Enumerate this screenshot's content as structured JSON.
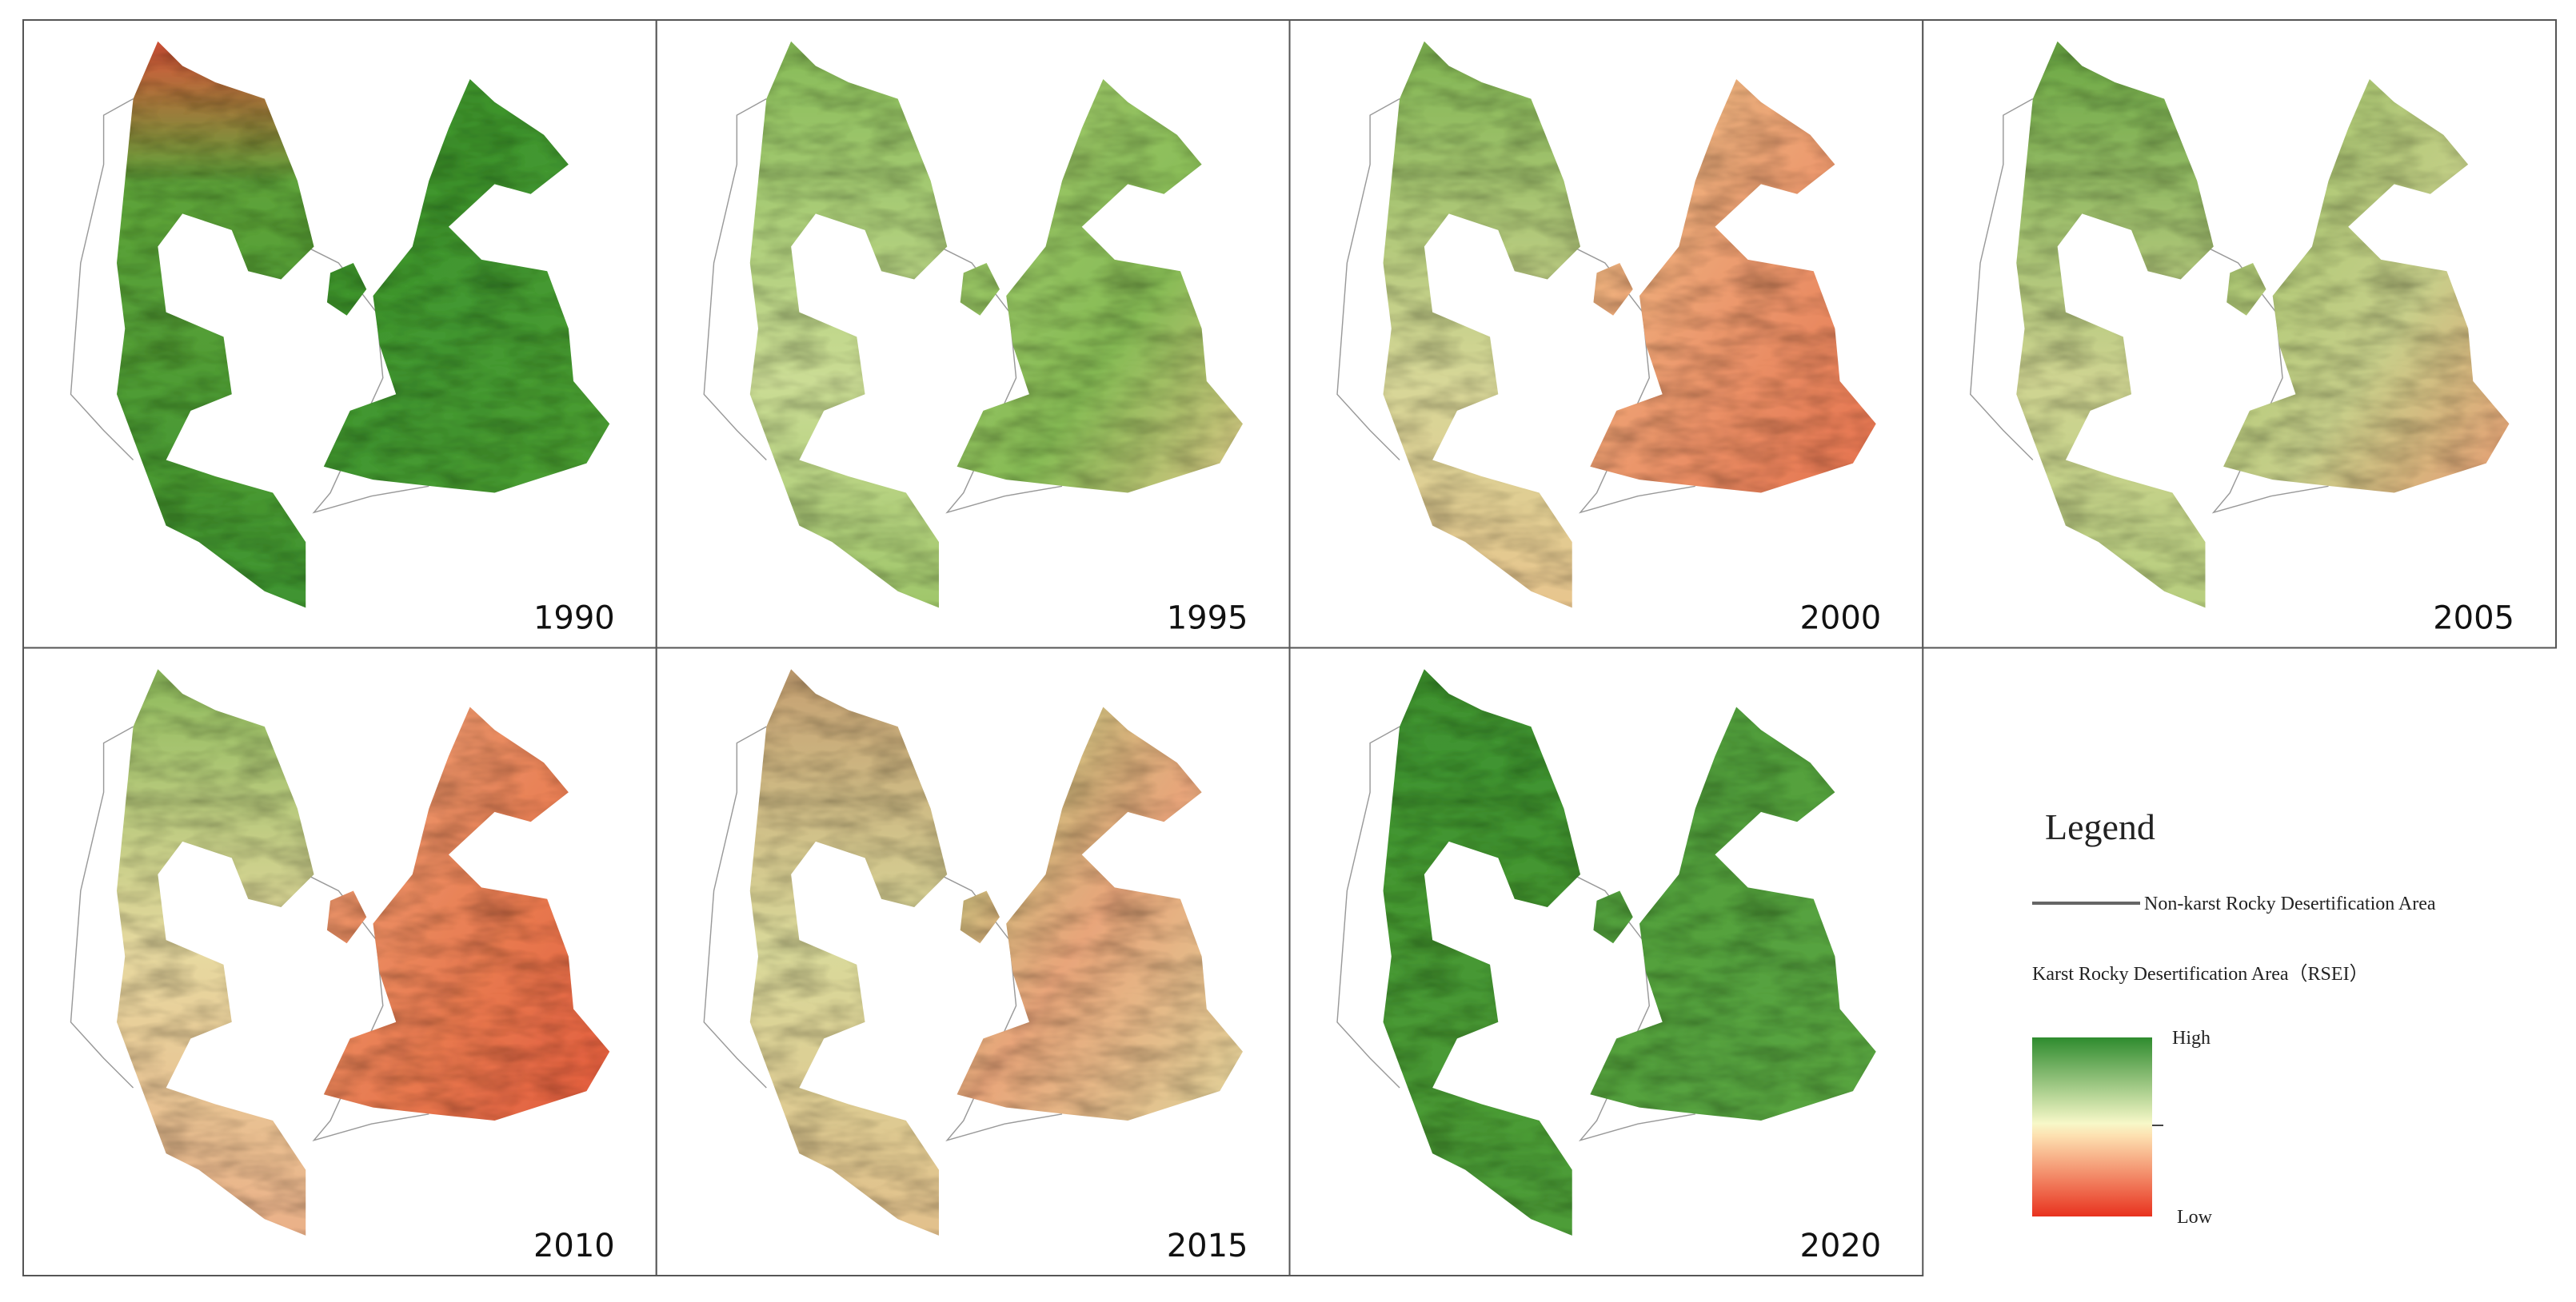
{
  "panels": [
    {
      "year": "1990"
    },
    {
      "year": "1995"
    },
    {
      "year": "2000"
    },
    {
      "year": "2005"
    },
    {
      "year": "2010"
    },
    {
      "year": "2015"
    },
    {
      "year": "2020"
    }
  ],
  "legend": {
    "title": "Legend",
    "non_karst": "Non-karst Rocky Desertification Area",
    "karst": "Karst Rocky Desertification Area（RSEI）",
    "high": "High",
    "low": "Low"
  }
}
